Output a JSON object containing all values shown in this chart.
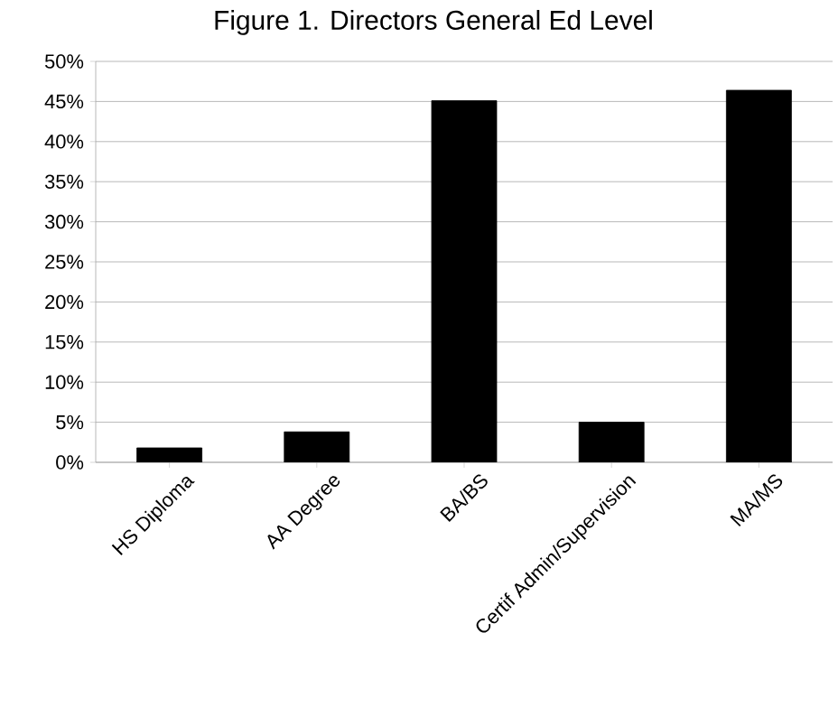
{
  "chart_data": {
    "type": "bar",
    "title": "Figure 1. Directors General Ed Level",
    "categories": [
      "HS Diploma",
      "AA Degree",
      "BA/BS",
      "Certif Admin/Supervision",
      "MA/MS"
    ],
    "values": [
      1.8,
      3.8,
      45.1,
      5.0,
      46.4
    ],
    "color": "#000000",
    "ylim": [
      0,
      50
    ],
    "yticks": [
      {
        "value": 0,
        "label": "0%"
      },
      {
        "value": 5,
        "label": "5%"
      },
      {
        "value": 10,
        "label": "10%"
      },
      {
        "value": 15,
        "label": "15%"
      },
      {
        "value": 20,
        "label": "20%"
      },
      {
        "value": 25,
        "label": "25%"
      },
      {
        "value": 30,
        "label": "30%"
      },
      {
        "value": 35,
        "label": "35%"
      },
      {
        "value": 40,
        "label": "40%"
      },
      {
        "value": 45,
        "label": "45%"
      },
      {
        "value": 50,
        "label": "50%"
      }
    ],
    "grid": "y"
  }
}
